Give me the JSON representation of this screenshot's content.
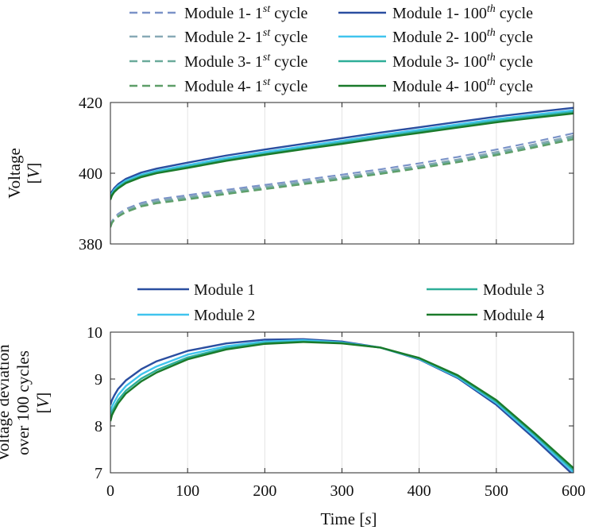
{
  "figure": {
    "xlabel_main": "Time ",
    "xlabel_unit": "s"
  },
  "chart_data": [
    {
      "type": "line",
      "ylabel_main": "Voltage",
      "ylabel_unit": "V",
      "xlim": [
        0,
        600
      ],
      "ylim": [
        380,
        420
      ],
      "xticks": [
        0,
        100,
        200,
        300,
        400,
        500,
        600
      ],
      "yticks": [
        380,
        400,
        420
      ],
      "grid": "vertical",
      "legend_position": "top",
      "series": [
        {
          "name": "Module 1- 1st cycle",
          "module": "Module 1- ",
          "sup": "st",
          "cycle_number": "1",
          "suffix": " cycle",
          "style": "dashed",
          "color": "#7b93c8",
          "x": [
            0,
            2,
            5,
            10,
            20,
            40,
            60,
            100,
            150,
            200,
            250,
            300,
            350,
            400,
            450,
            500,
            550,
            600
          ],
          "y": [
            385.0,
            386.4,
            387.4,
            388.5,
            389.9,
            391.6,
            392.6,
            393.8,
            395.3,
            396.7,
            398.1,
            399.6,
            401.1,
            402.8,
            404.6,
            406.7,
            408.9,
            411.3
          ]
        },
        {
          "name": "Module 2- 1st cycle",
          "module": "Module 2- ",
          "sup": "st",
          "cycle_number": "1",
          "suffix": " cycle",
          "style": "dashed",
          "color": "#88a9b6",
          "x": [
            0,
            2,
            5,
            10,
            20,
            40,
            60,
            100,
            150,
            200,
            250,
            300,
            350,
            400,
            450,
            500,
            550,
            600
          ],
          "y": [
            384.9,
            386.2,
            387.2,
            388.2,
            389.6,
            391.2,
            392.2,
            393.3,
            394.8,
            396.2,
            397.6,
            399.0,
            400.5,
            402.1,
            403.9,
            406.0,
            408.2,
            410.6
          ]
        },
        {
          "name": "Module 3- 1st cycle",
          "module": "Module 3- ",
          "sup": "st",
          "cycle_number": "1",
          "suffix": " cycle",
          "style": "dashed",
          "color": "#6aaa9a",
          "x": [
            0,
            2,
            5,
            10,
            20,
            40,
            60,
            100,
            150,
            200,
            250,
            300,
            350,
            400,
            450,
            500,
            550,
            600
          ],
          "y": [
            384.8,
            386.0,
            387.0,
            387.9,
            389.2,
            390.8,
            391.8,
            392.9,
            394.4,
            395.8,
            397.2,
            398.6,
            400.1,
            401.7,
            403.5,
            405.5,
            407.7,
            410.1
          ]
        },
        {
          "name": "Module 4- 1st cycle",
          "module": "Module 4- ",
          "sup": "st",
          "cycle_number": "1",
          "suffix": " cycle",
          "style": "dashed",
          "color": "#5e9e68",
          "x": [
            0,
            2,
            5,
            10,
            20,
            40,
            60,
            100,
            150,
            200,
            250,
            300,
            350,
            400,
            450,
            500,
            550,
            600
          ],
          "y": [
            384.7,
            385.9,
            386.8,
            387.7,
            389.0,
            390.6,
            391.5,
            392.6,
            394.1,
            395.5,
            396.9,
            398.3,
            399.8,
            401.4,
            403.1,
            405.1,
            407.3,
            409.6
          ]
        },
        {
          "name": "Module 1- 100th cycle",
          "module": "Module 1- ",
          "sup": "th",
          "cycle_number": "100",
          "suffix": " cycle",
          "style": "solid",
          "color": "#2a4ea0",
          "x": [
            0,
            2,
            5,
            10,
            20,
            40,
            60,
            100,
            150,
            200,
            250,
            300,
            350,
            400,
            450,
            500,
            550,
            600
          ],
          "y": [
            393.5,
            394.8,
            395.8,
            396.9,
            398.4,
            400.2,
            401.3,
            403.0,
            405.0,
            406.7,
            408.3,
            409.9,
            411.5,
            413.0,
            414.5,
            416.0,
            417.3,
            418.5
          ]
        },
        {
          "name": "Module 2- 100th cycle",
          "module": "Module 2- ",
          "sup": "th",
          "cycle_number": "100",
          "suffix": " cycle",
          "style": "solid",
          "color": "#40c4ee",
          "x": [
            0,
            2,
            5,
            10,
            20,
            40,
            60,
            100,
            150,
            200,
            250,
            300,
            350,
            400,
            450,
            500,
            550,
            600
          ],
          "y": [
            393.1,
            394.3,
            395.3,
            396.4,
            397.9,
            399.6,
            400.7,
            402.3,
            404.3,
            406.0,
            407.6,
            409.2,
            410.8,
            412.3,
            413.8,
            415.3,
            416.6,
            417.8
          ]
        },
        {
          "name": "Module 3- 100th cycle",
          "module": "Module 3- ",
          "sup": "th",
          "cycle_number": "100",
          "suffix": " cycle",
          "style": "solid",
          "color": "#2eae98",
          "x": [
            0,
            2,
            5,
            10,
            20,
            40,
            60,
            100,
            150,
            200,
            250,
            300,
            350,
            400,
            450,
            500,
            550,
            600
          ],
          "y": [
            392.8,
            394.0,
            395.0,
            396.0,
            397.5,
            399.2,
            400.3,
            401.8,
            403.8,
            405.5,
            407.1,
            408.7,
            410.3,
            411.8,
            413.3,
            414.8,
            416.1,
            417.3
          ]
        },
        {
          "name": "Module 4- 100th cycle",
          "module": "Module 4- ",
          "sup": "th",
          "cycle_number": "100",
          "suffix": " cycle",
          "style": "solid",
          "color": "#1a7a2a",
          "x": [
            0,
            2,
            5,
            10,
            20,
            40,
            60,
            100,
            150,
            200,
            250,
            300,
            350,
            400,
            450,
            500,
            550,
            600
          ],
          "y": [
            392.5,
            393.7,
            394.7,
            395.7,
            397.2,
            398.9,
            400.0,
            401.5,
            403.5,
            405.2,
            406.8,
            408.3,
            409.9,
            411.4,
            412.9,
            414.4,
            415.7,
            416.9
          ]
        }
      ]
    },
    {
      "type": "line",
      "ylabel_lines": [
        "Voltage deviation",
        "over 100 cycles"
      ],
      "ylabel_unit": "V",
      "xlim": [
        0,
        600
      ],
      "ylim": [
        7,
        10
      ],
      "xticks": [
        0,
        100,
        200,
        300,
        400,
        500,
        600
      ],
      "yticks": [
        7,
        8,
        9,
        10
      ],
      "grid": "vertical",
      "legend_position": "top",
      "series": [
        {
          "name": "Module 1",
          "style": "solid",
          "color": "#2a4ea0",
          "x": [
            0,
            2,
            5,
            10,
            20,
            40,
            60,
            100,
            150,
            200,
            250,
            300,
            350,
            400,
            450,
            500,
            550,
            600
          ],
          "y": [
            8.45,
            8.55,
            8.65,
            8.79,
            8.97,
            9.21,
            9.38,
            9.6,
            9.76,
            9.84,
            9.85,
            9.8,
            9.67,
            9.42,
            9.02,
            8.45,
            7.72,
            6.95
          ]
        },
        {
          "name": "Module 2",
          "style": "solid",
          "color": "#40c4ee",
          "x": [
            0,
            2,
            5,
            10,
            20,
            40,
            60,
            100,
            150,
            200,
            250,
            300,
            350,
            400,
            450,
            500,
            550,
            600
          ],
          "y": [
            8.3,
            8.41,
            8.51,
            8.66,
            8.85,
            9.1,
            9.27,
            9.52,
            9.7,
            9.8,
            9.83,
            9.78,
            9.67,
            9.43,
            9.04,
            8.49,
            7.77,
            7.01
          ]
        },
        {
          "name": "Module 3",
          "style": "solid",
          "color": "#2eae98",
          "x": [
            0,
            2,
            5,
            10,
            20,
            40,
            60,
            100,
            150,
            200,
            250,
            300,
            350,
            400,
            450,
            500,
            550,
            600
          ],
          "y": [
            8.18,
            8.3,
            8.4,
            8.55,
            8.75,
            9.01,
            9.19,
            9.46,
            9.66,
            9.77,
            9.8,
            9.77,
            9.67,
            9.44,
            9.06,
            8.52,
            7.81,
            7.06
          ]
        },
        {
          "name": "Module 4",
          "style": "solid",
          "color": "#1a7a2a",
          "x": [
            0,
            2,
            5,
            10,
            20,
            40,
            60,
            100,
            150,
            200,
            250,
            300,
            350,
            400,
            450,
            500,
            550,
            600
          ],
          "y": [
            8.1,
            8.23,
            8.33,
            8.48,
            8.69,
            8.95,
            9.14,
            9.42,
            9.63,
            9.75,
            9.79,
            9.76,
            9.67,
            9.45,
            9.08,
            8.55,
            7.84,
            7.1
          ]
        }
      ]
    }
  ]
}
